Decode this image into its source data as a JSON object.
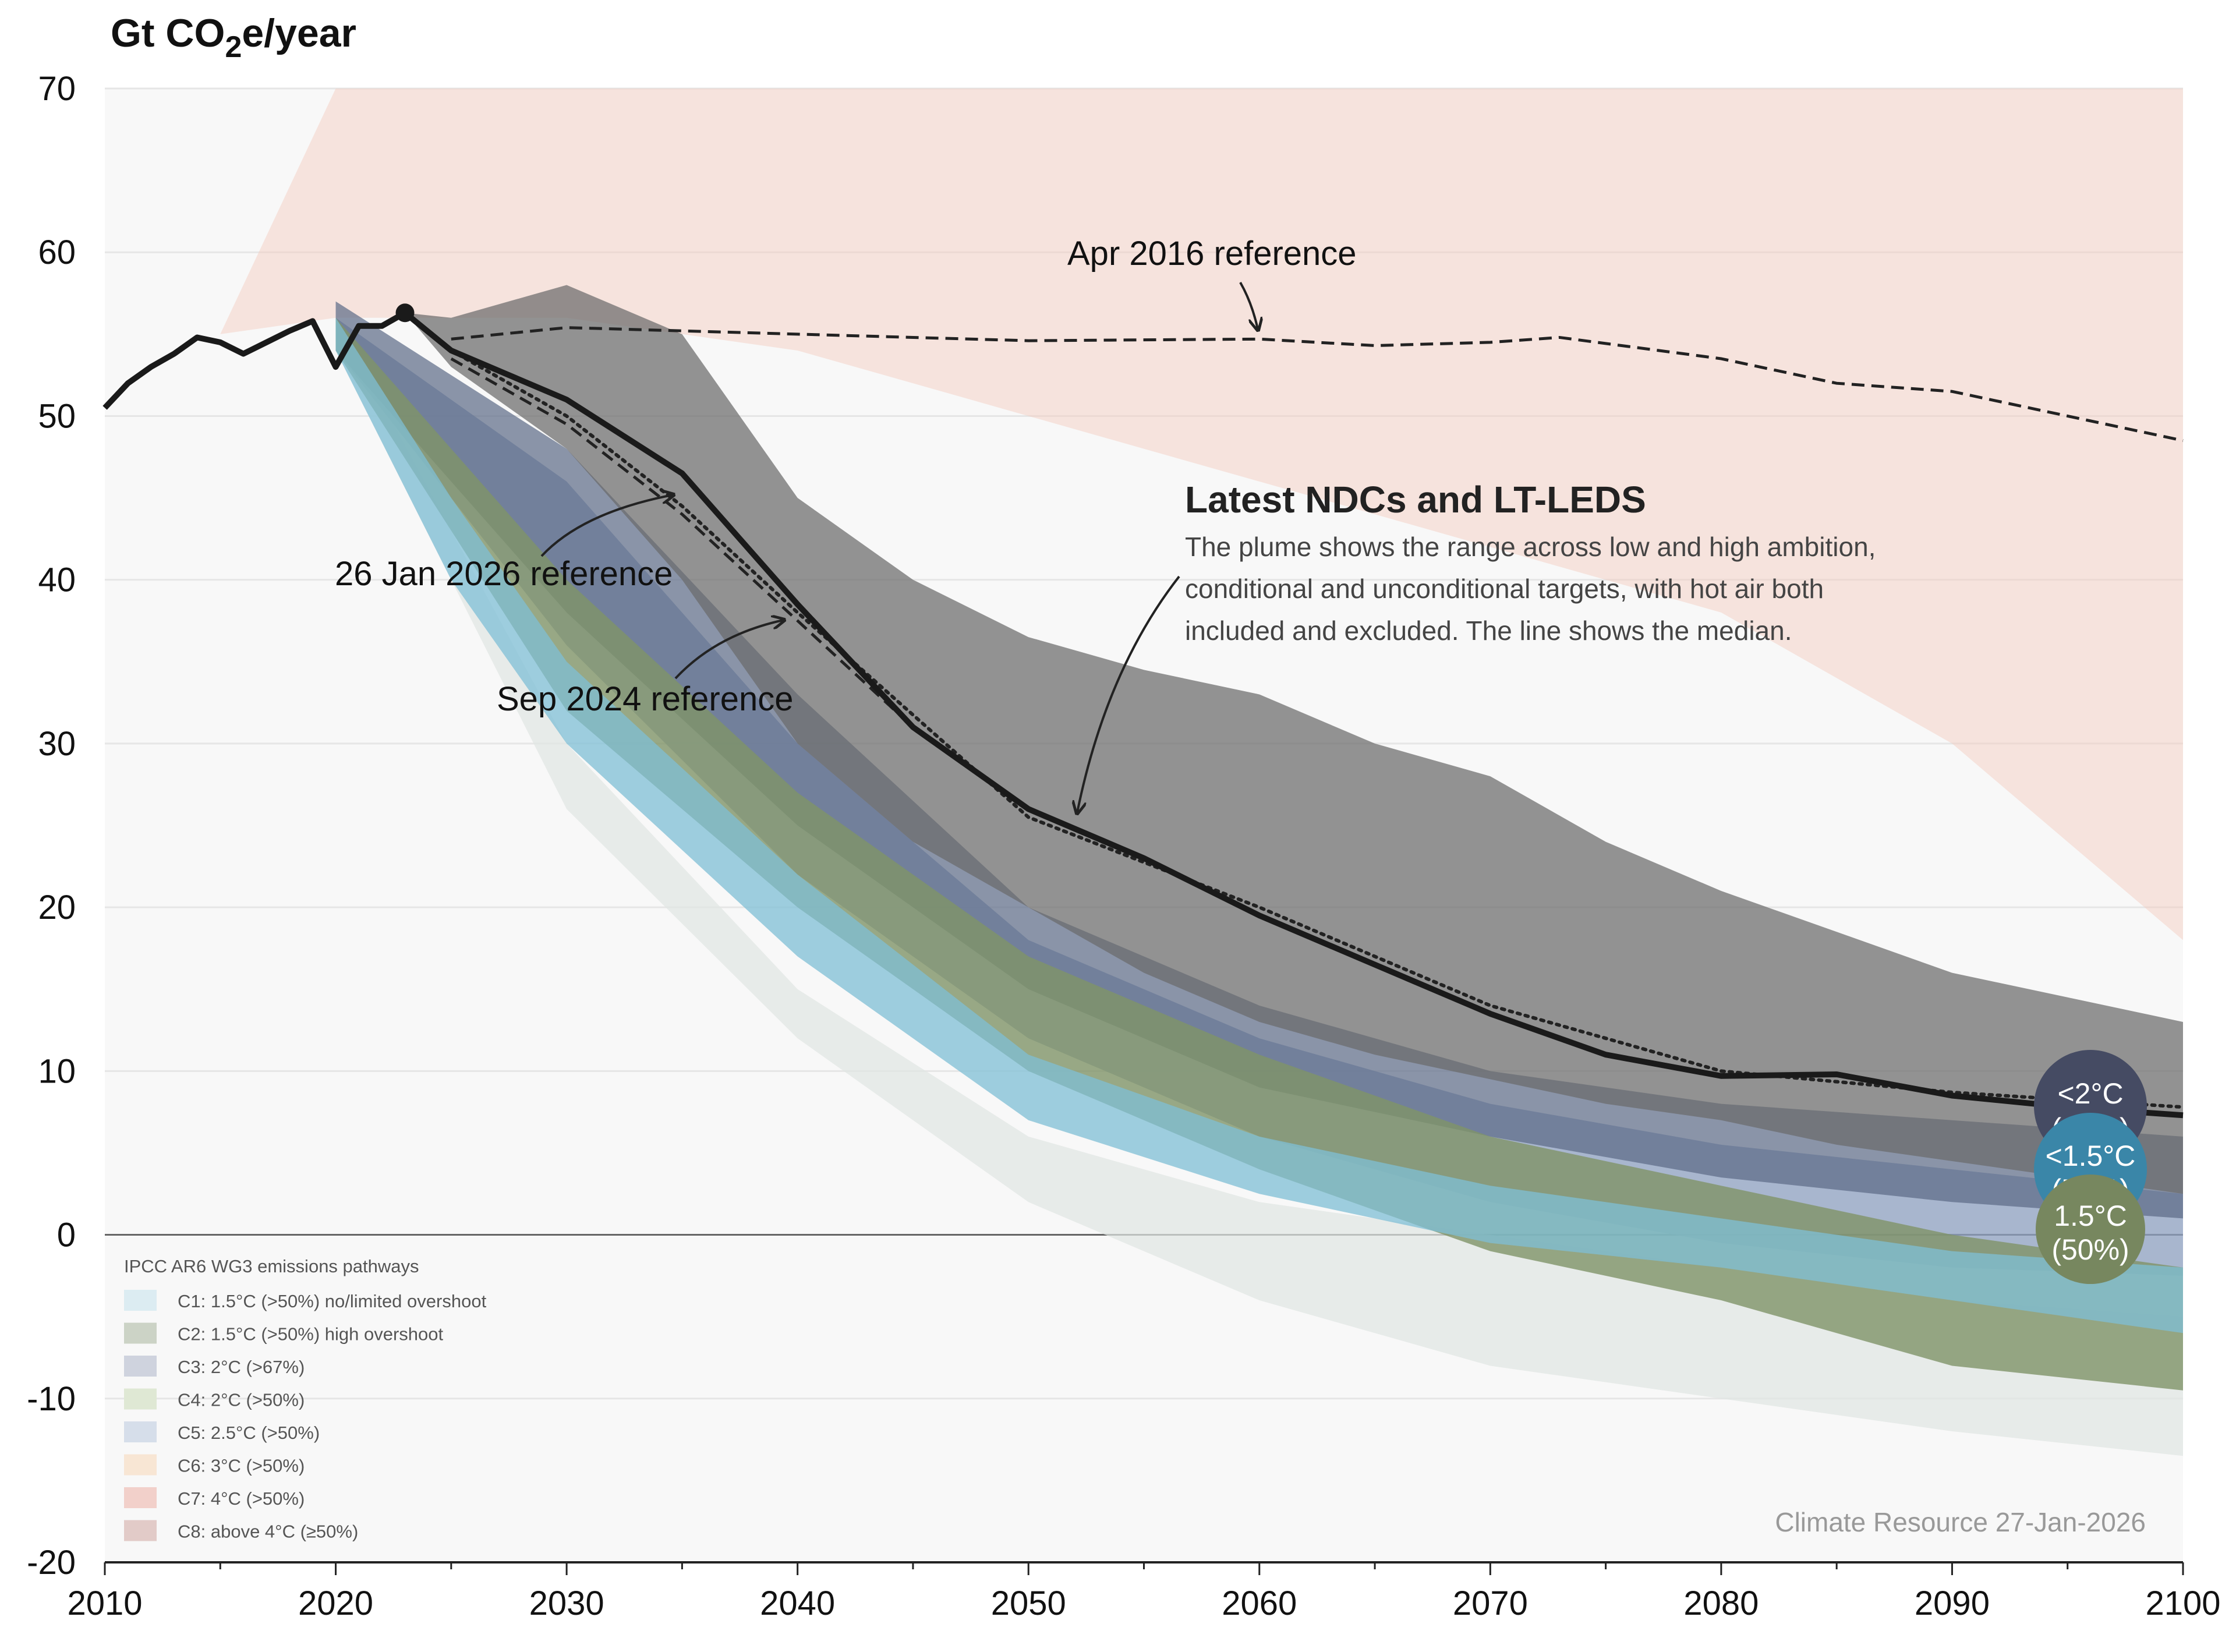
{
  "chart_data": {
    "type": "line",
    "ylabel": "Gt CO2e/year",
    "ylabel_parts": {
      "main": "Gt CO",
      "sub": "2",
      "rest": "e/year"
    },
    "xlim": [
      2010,
      2100
    ],
    "ylim": [
      -20,
      70
    ],
    "x_ticks": [
      "2010",
      "2020",
      "2030",
      "2040",
      "2050",
      "2060",
      "2070",
      "2080",
      "2090",
      "2100"
    ],
    "y_ticks": [
      "70",
      "60",
      "50",
      "40",
      "30",
      "20",
      "10",
      "0",
      "-10",
      "-20"
    ],
    "grid": true,
    "colors": {
      "median": "#1a1a1a",
      "plume": "#6b6b6b",
      "c1": "#7fbfd6",
      "c2": "#7f9368",
      "c3": "#5b6a86",
      "c5": "#8ea0c0",
      "c7": "#f0b8aa",
      "badge_2c": "#454b63",
      "badge_15c": "#3a86a8",
      "badge_15os": "#77875f"
    },
    "historical": {
      "x": [
        2010,
        2011,
        2012,
        2013,
        2014,
        2015,
        2016,
        2017,
        2018,
        2019,
        2020,
        2021,
        2022,
        2023
      ],
      "y": [
        50.5,
        52,
        53,
        53.8,
        54.8,
        54.5,
        53.8,
        54.5,
        55.2,
        55.8,
        53,
        55.5,
        55.5,
        56.3
      ]
    },
    "series": [
      {
        "name": "Latest NDCs and LT-LEDS",
        "style": "solid",
        "x": [
          2023,
          2025,
          2030,
          2035,
          2040,
          2045,
          2050,
          2055,
          2060,
          2065,
          2070,
          2075,
          2080,
          2085,
          2090,
          2095,
          2100
        ],
        "y": [
          56.3,
          54,
          51,
          46.5,
          38.5,
          31,
          26,
          23,
          19.5,
          16.5,
          13.5,
          11,
          9.7,
          9.8,
          8.5,
          7.8,
          7.3
        ]
      },
      {
        "name": "Apr 2016 reference",
        "style": "dashed",
        "x": [
          2025,
          2030,
          2040,
          2050,
          2060,
          2065,
          2070,
          2073,
          2080,
          2085,
          2090,
          2095,
          2100
        ],
        "y": [
          54.7,
          55.4,
          55,
          54.6,
          54.7,
          54.3,
          54.5,
          54.8,
          53.5,
          52,
          51.5,
          50,
          48.5
        ]
      },
      {
        "name": "26 Jan 2026 reference",
        "style": "dotted",
        "x": [
          2025,
          2030,
          2035,
          2040,
          2050,
          2060,
          2070,
          2080,
          2090,
          2100
        ],
        "y": [
          54,
          50,
          44.5,
          38,
          25.5,
          20,
          14,
          10,
          8.7,
          7.8
        ]
      },
      {
        "name": "Sep 2024 reference",
        "style": "dashed",
        "x": [
          2025,
          2030,
          2035,
          2040,
          2045,
          2050
        ],
        "y": [
          53.5,
          49.5,
          44,
          37.5,
          31,
          26
        ]
      }
    ],
    "plume": {
      "x": [
        2023,
        2025,
        2030,
        2035,
        2040,
        2045,
        2050,
        2055,
        2060,
        2065,
        2070,
        2075,
        2080,
        2085,
        2090,
        2095,
        2100
      ],
      "upper": [
        56.3,
        56,
        58,
        55,
        45,
        40,
        36.5,
        34.5,
        33,
        30,
        28,
        24,
        21,
        18.5,
        16,
        14.5,
        13
      ],
      "lower": [
        56.3,
        53,
        48,
        40,
        30,
        24,
        20,
        16,
        13,
        11,
        9.5,
        8,
        7,
        5.5,
        4.5,
        3.5,
        2.5
      ]
    },
    "ipcc_bands": [
      {
        "id": "c7",
        "x": [
          2015,
          2020,
          2030,
          2040,
          2050,
          2060,
          2070,
          2080,
          2090,
          2100
        ],
        "upper": [
          55,
          70,
          70,
          70,
          70,
          70,
          70,
          70,
          70,
          70
        ],
        "lower": [
          55,
          56,
          56,
          54,
          50,
          46,
          42,
          38,
          30,
          18
        ]
      },
      {
        "id": "c5",
        "x": [
          2020,
          2030,
          2040,
          2050,
          2060,
          2070,
          2080,
          2090,
          2100
        ],
        "upper": [
          56,
          46,
          30,
          18,
          12,
          8,
          5.5,
          4,
          2.5
        ],
        "lower": [
          54,
          36,
          22,
          12,
          6,
          2,
          -0.5,
          -2,
          -2.5
        ]
      },
      {
        "id": "c3",
        "x": [
          2020,
          2030,
          2040,
          2050,
          2060,
          2070,
          2080,
          2090,
          2100
        ],
        "upper": [
          57,
          48,
          33,
          20,
          14,
          10,
          8,
          7,
          6
        ],
        "lower": [
          54,
          38,
          25,
          15,
          9,
          6,
          3.5,
          2,
          1
        ]
      },
      {
        "id": "c2",
        "x": [
          2020,
          2030,
          2040,
          2050,
          2060,
          2070,
          2080,
          2090,
          2100
        ],
        "upper": [
          56,
          40,
          27,
          17,
          11,
          6,
          3,
          0,
          -2
        ],
        "lower": [
          54,
          32,
          20,
          10,
          4,
          -1,
          -4,
          -8,
          -9.5
        ]
      },
      {
        "id": "c1",
        "x": [
          2020,
          2025,
          2030,
          2040,
          2050,
          2060,
          2070,
          2080,
          2090,
          2100
        ],
        "upper": [
          56,
          45,
          35,
          22,
          11,
          6,
          3,
          1,
          -1,
          -2
        ],
        "lower": [
          54,
          40,
          30,
          17,
          7,
          2.5,
          -0.5,
          -2,
          -4,
          -6
        ]
      }
    ],
    "annotations": {
      "apr2016": "Apr 2016 reference",
      "jan2026": "26 Jan 2026 reference",
      "sep2024": "Sep 2024 reference",
      "ndc_title": "Latest NDCs and LT-LEDS",
      "ndc_body": [
        "The plume shows the range across low and high ambition,",
        "conditional and unconditional targets, with hot air both",
        "included and excluded. The line shows the median."
      ]
    },
    "badges": [
      {
        "line1": "<2°C",
        "line2": "(67%)"
      },
      {
        "line1": "<1.5°C",
        "line2": "(50%)"
      },
      {
        "line1": "1.5°C",
        "line2": "(50%)"
      }
    ],
    "legend": {
      "title": "IPCC AR6 WG3 emissions pathways",
      "placement": "bottom-left",
      "items": [
        {
          "label": "C1: 1.5°C (>50%) no/limited overshoot",
          "color": "#dcecf2"
        },
        {
          "label": "C2: 1.5°C (>50%) high overshoot",
          "color": "#ccd3c6"
        },
        {
          "label": "C3: 2°C (>67%)",
          "color": "#cfd3de"
        },
        {
          "label": "C4: 2°C (>50%)",
          "color": "#dfe8d4"
        },
        {
          "label": "C5: 2.5°C (>50%)",
          "color": "#d6deea"
        },
        {
          "label": "C6: 3°C (>50%)",
          "color": "#f8e6d4"
        },
        {
          "label": "C7: 4°C (>50%)",
          "color": "#f2d0ca"
        },
        {
          "label": "C8: above 4°C (≥50%)",
          "color": "#e2cbc8"
        }
      ]
    },
    "credit": "Climate Resource 27-Jan-2026"
  }
}
